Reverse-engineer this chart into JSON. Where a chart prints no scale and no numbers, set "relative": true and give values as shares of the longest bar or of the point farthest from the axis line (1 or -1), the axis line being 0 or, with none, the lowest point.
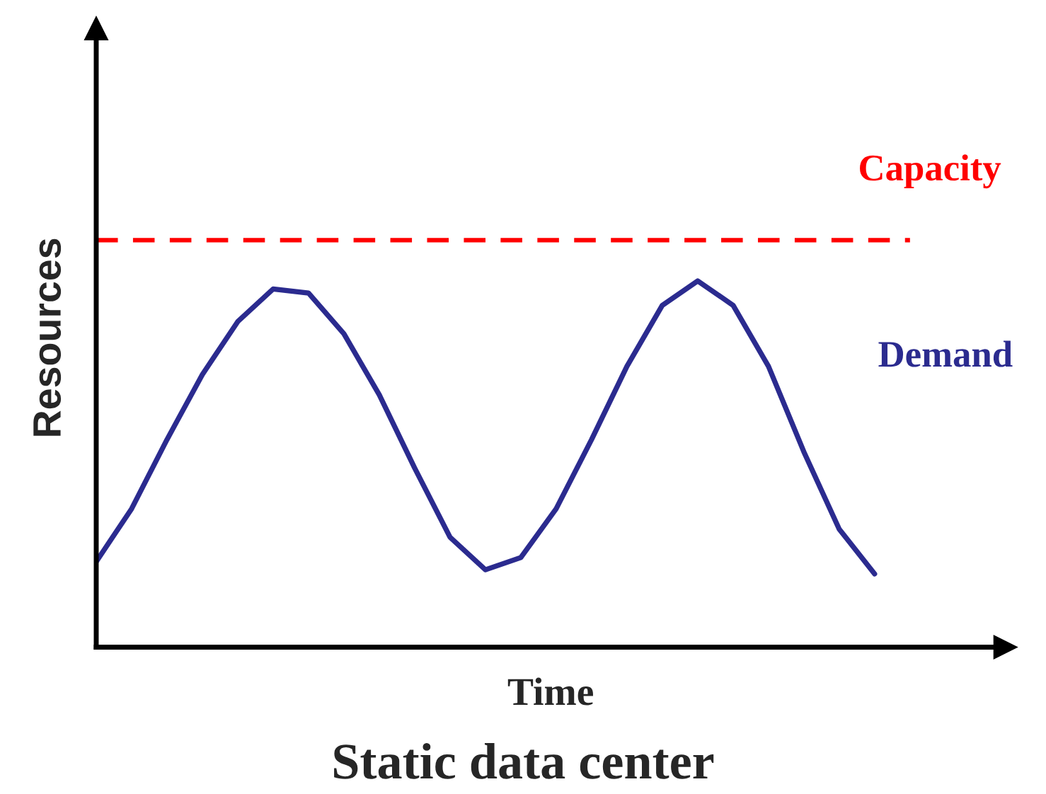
{
  "chart_data": {
    "type": "line",
    "title": "Static data center",
    "xlabel": "Time",
    "ylabel": "Resources",
    "relative": true,
    "legend": false,
    "grid": false,
    "categories": [
      null,
      null,
      null,
      null,
      null,
      null,
      null,
      null,
      null,
      null,
      null,
      null,
      null,
      null,
      null,
      null,
      null,
      null,
      null,
      null,
      null,
      null,
      null,
      null
    ],
    "series": [
      {
        "name": "Capacity",
        "color": "#ff0000",
        "line_style": "dashed",
        "values": [
          1,
          1,
          1,
          1,
          1,
          1,
          1,
          1,
          1,
          1,
          1,
          1,
          1,
          1,
          1,
          1,
          1,
          1,
          1,
          1,
          1,
          1,
          1,
          1
        ]
      },
      {
        "name": "Demand",
        "color": "#2b2b8f",
        "line_style": "solid",
        "values": [
          0.21,
          0.34,
          0.51,
          0.67,
          0.8,
          0.88,
          0.87,
          0.77,
          0.62,
          0.44,
          0.27,
          0.19,
          0.22,
          0.34,
          0.51,
          0.69,
          0.84,
          0.9,
          0.84,
          0.69,
          0.48,
          0.29,
          0.18,
          null
        ]
      }
    ]
  }
}
